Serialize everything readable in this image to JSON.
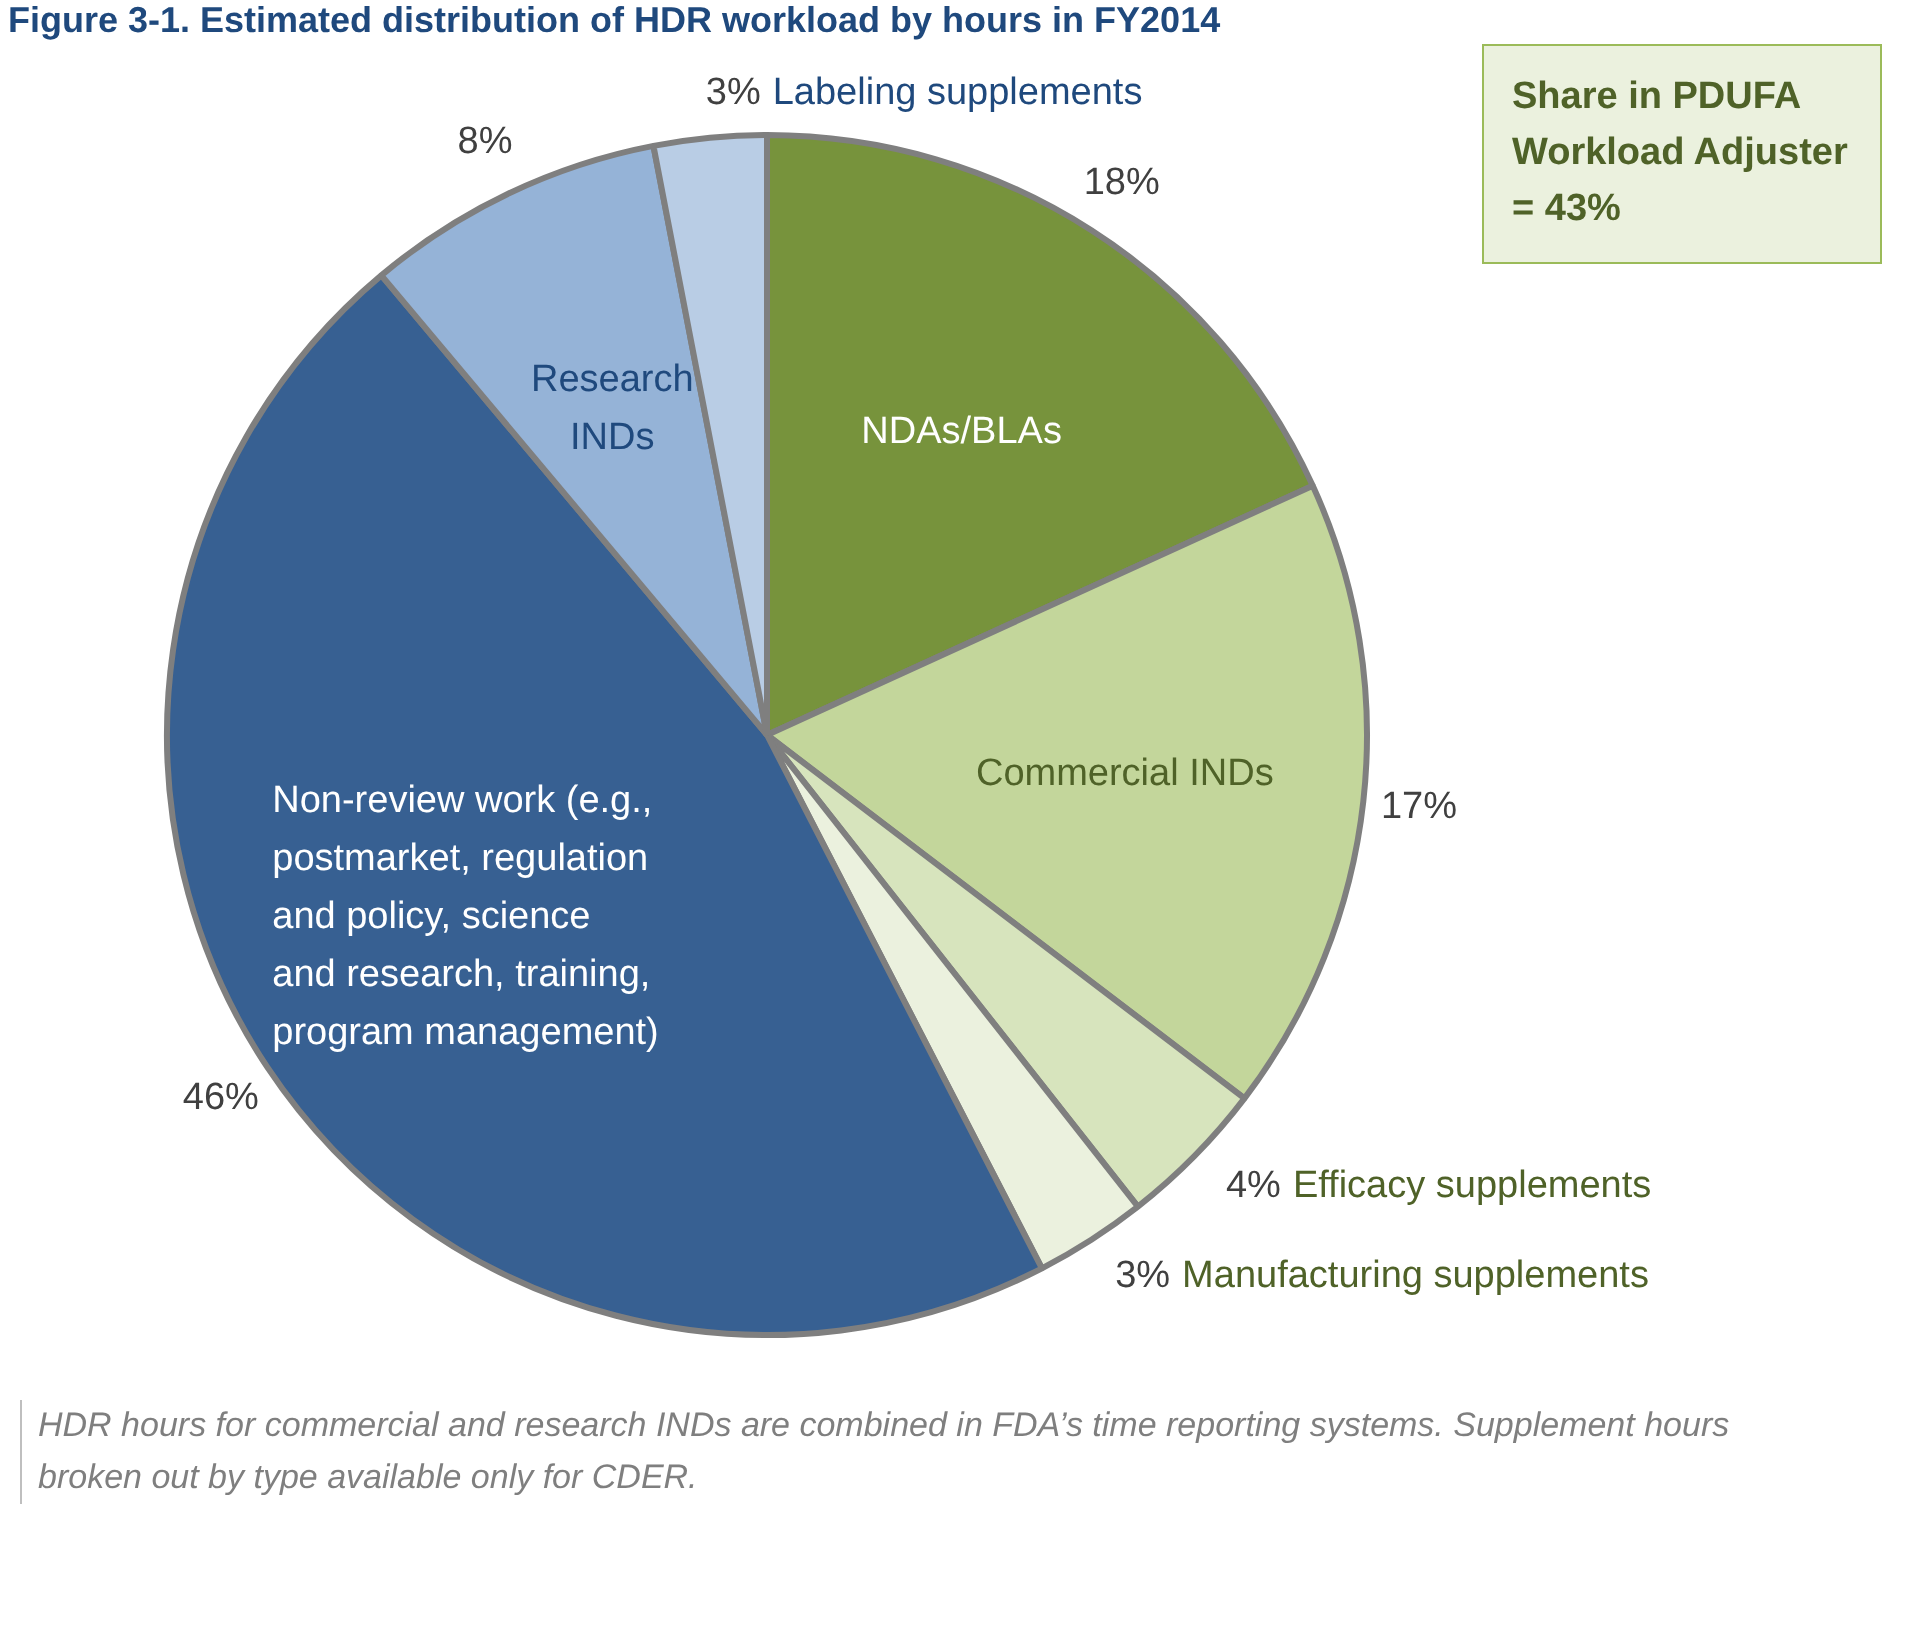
{
  "chart_data": {
    "type": "pie",
    "title": "Figure 3-1. Estimated distribution of HDR workload by hours in FY2014",
    "categories": [
      "NDAs/BLAs",
      "Commercial INDs",
      "Efficacy supplements",
      "Manufacturing supplements",
      "Non-review work (e.g., postmarket, regulation and policy, science and research, training, program management)",
      "Research INDs",
      "Labeling supplements"
    ],
    "values": [
      18,
      17,
      4,
      3,
      46,
      8,
      3
    ],
    "colors": [
      "#77933c",
      "#c3d69b",
      "#d7e4bd",
      "#ebf1de",
      "#376092",
      "#95b3d7",
      "#b9cde5"
    ],
    "value_labels": [
      "18%",
      "17%",
      "4%",
      "3%",
      "46%",
      "8%",
      "3%"
    ],
    "legend": false,
    "annotations": [
      "Share in PDUFA Workload Adjuster = 43%",
      "HDR hours for commercial and research INDs are combined in FDA’s time reporting systems. Supplement hours broken out by type available only for CDER."
    ]
  }
}
